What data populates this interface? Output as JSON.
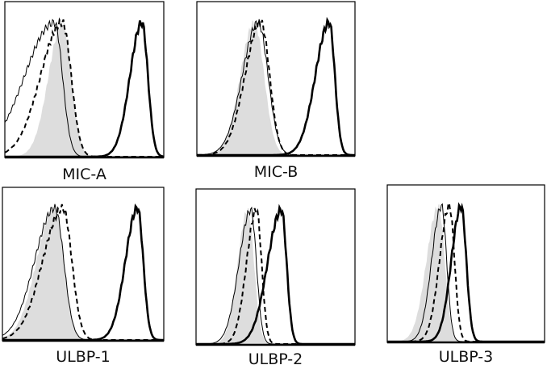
{
  "chart_data": [
    {
      "type": "area",
      "title": "MIC-A",
      "x_scale": "log",
      "xlim": [
        0,
        4
      ],
      "series": [
        {
          "style": "filled-gray",
          "peak": 1.45,
          "sl": 0.35,
          "sr": 0.22
        },
        {
          "style": "thin",
          "peak": 1.25,
          "sl": 0.75,
          "sr": 0.2
        },
        {
          "style": "dashed",
          "peak": 1.45,
          "sl": 0.55,
          "sr": 0.22
        },
        {
          "style": "thick",
          "peak": 3.45,
          "sl": 0.3,
          "sr": 0.15
        }
      ]
    },
    {
      "type": "area",
      "title": "MIC-B",
      "x_scale": "log",
      "xlim": [
        0,
        4
      ],
      "series": [
        {
          "style": "filled-gray",
          "peak": 1.45,
          "sl": 0.35,
          "sr": 0.25
        },
        {
          "style": "thin",
          "peak": 1.55,
          "sl": 0.4,
          "sr": 0.25
        },
        {
          "style": "dashed",
          "peak": 1.62,
          "sl": 0.4,
          "sr": 0.22
        },
        {
          "style": "thick",
          "peak": 3.35,
          "sl": 0.35,
          "sr": 0.14
        }
      ]
    },
    {
      "type": "area",
      "title": "ULBP-1",
      "x_scale": "log",
      "xlim": [
        0,
        4
      ],
      "series": [
        {
          "style": "filled-gray",
          "peak": 1.3,
          "sl": 0.45,
          "sr": 0.22
        },
        {
          "style": "thin",
          "peak": 1.3,
          "sl": 0.5,
          "sr": 0.22
        },
        {
          "style": "dashed",
          "peak": 1.5,
          "sl": 0.5,
          "sr": 0.22
        },
        {
          "style": "thick",
          "peak": 3.35,
          "sl": 0.3,
          "sr": 0.14
        }
      ]
    },
    {
      "type": "area",
      "title": "ULBP-2",
      "x_scale": "log",
      "xlim": [
        0,
        4
      ],
      "series": [
        {
          "style": "filled-gray",
          "peak": 1.3,
          "sl": 0.25,
          "sr": 0.16
        },
        {
          "style": "thin",
          "peak": 1.38,
          "sl": 0.3,
          "sr": 0.14
        },
        {
          "style": "dashed",
          "peak": 1.52,
          "sl": 0.25,
          "sr": 0.13
        },
        {
          "style": "thick",
          "peak": 2.15,
          "sl": 0.35,
          "sr": 0.13
        }
      ]
    },
    {
      "type": "area",
      "title": "ULBP-3",
      "x_scale": "log",
      "xlim": [
        0,
        4
      ],
      "series": [
        {
          "style": "filled-gray",
          "peak": 1.3,
          "sl": 0.3,
          "sr": 0.16
        },
        {
          "style": "thin",
          "peak": 1.38,
          "sl": 0.25,
          "sr": 0.13
        },
        {
          "style": "dashed",
          "peak": 1.58,
          "sl": 0.25,
          "sr": 0.13
        },
        {
          "style": "thick",
          "peak": 1.88,
          "sl": 0.25,
          "sr": 0.13
        }
      ]
    }
  ],
  "colors": {
    "filled-gray": "#dddddd",
    "line": "#000000"
  }
}
